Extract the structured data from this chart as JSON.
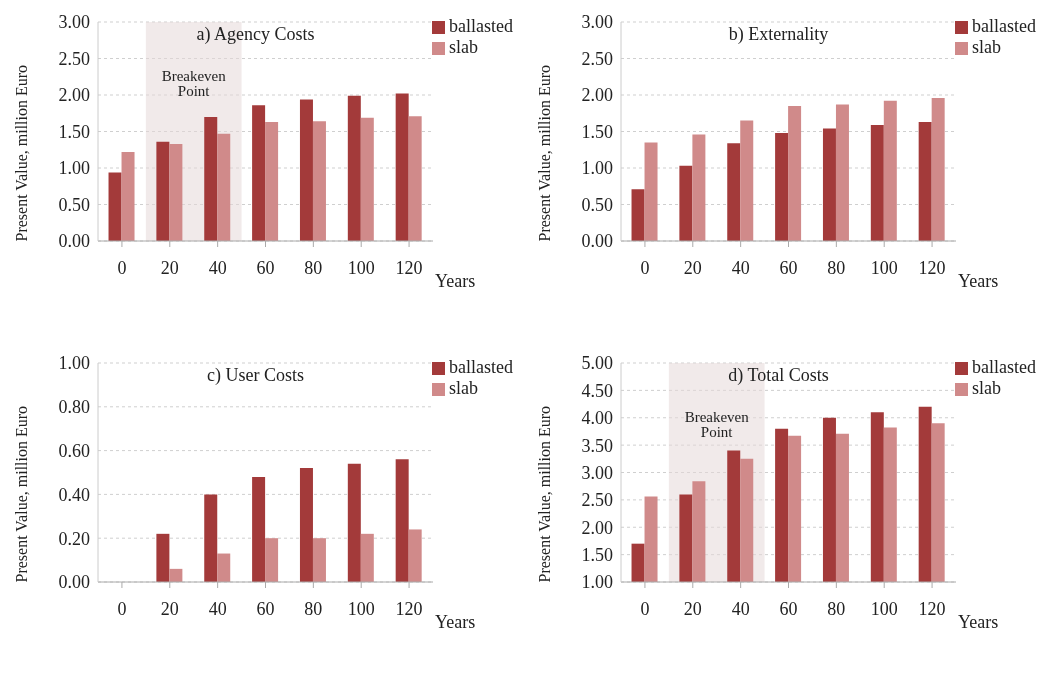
{
  "chart_data": [
    {
      "type": "bar",
      "title": "a) Agency Costs",
      "xlabel": "Years",
      "ylabel": "Present Value, million Euro",
      "categories": [
        "0",
        "20",
        "40",
        "60",
        "80",
        "100",
        "120"
      ],
      "series": [
        {
          "name": "ballasted",
          "color": "#a33a3a",
          "values": [
            0.94,
            1.36,
            1.7,
            1.86,
            1.94,
            1.99,
            2.02
          ]
        },
        {
          "name": "slab",
          "color": "#d08a8a",
          "values": [
            1.22,
            1.33,
            1.47,
            1.63,
            1.64,
            1.69,
            1.71
          ]
        }
      ],
      "ylim": [
        0,
        3
      ],
      "yticks": [
        {
          "value": 0,
          "label": "0.00"
        },
        {
          "value": 0.5,
          "label": "0.50"
        },
        {
          "value": 1,
          "label": "1.00"
        },
        {
          "value": 1.5,
          "label": "1.50"
        },
        {
          "value": 2,
          "label": "2.00"
        },
        {
          "value": 2.5,
          "label": "2.50"
        },
        {
          "value": 3,
          "label": "3.00"
        }
      ],
      "bands": [
        {
          "axis": "x",
          "from": "20",
          "to": "40",
          "label": "Breakeven Point",
          "color": "#e6d8d8"
        }
      ],
      "grid": "y",
      "legend": "top right"
    },
    {
      "type": "bar",
      "title": "b) Externality",
      "xlabel": "Years",
      "ylabel": "Present Value, million Euro",
      "categories": [
        "0",
        "20",
        "40",
        "60",
        "80",
        "100",
        "120"
      ],
      "series": [
        {
          "name": "ballasted",
          "color": "#a33a3a",
          "values": [
            0.71,
            1.03,
            1.34,
            1.48,
            1.54,
            1.59,
            1.63
          ]
        },
        {
          "name": "slab",
          "color": "#d08a8a",
          "values": [
            1.35,
            1.46,
            1.65,
            1.85,
            1.87,
            1.92,
            1.96
          ]
        }
      ],
      "ylim": [
        0,
        3
      ],
      "yticks": [
        {
          "value": 0,
          "label": "0.00"
        },
        {
          "value": 0.5,
          "label": "0.50"
        },
        {
          "value": 1,
          "label": "1.00"
        },
        {
          "value": 1.5,
          "label": "1.50"
        },
        {
          "value": 2,
          "label": "2.00"
        },
        {
          "value": 2.5,
          "label": "2.50"
        },
        {
          "value": 3,
          "label": "3.00"
        }
      ],
      "grid": "y",
      "legend": "top right"
    },
    {
      "type": "bar",
      "title": "c) User Costs",
      "xlabel": "Years",
      "ylabel": "Present Value, million Euro",
      "categories": [
        "0",
        "20",
        "40",
        "60",
        "80",
        "100",
        "120"
      ],
      "series": [
        {
          "name": "ballasted",
          "color": "#a33a3a",
          "values": [
            0,
            0.22,
            0.4,
            0.48,
            0.52,
            0.54,
            0.56
          ]
        },
        {
          "name": "slab",
          "color": "#d08a8a",
          "values": [
            0,
            0.06,
            0.13,
            0.2,
            0.2,
            0.22,
            0.24
          ]
        }
      ],
      "ylim": [
        0,
        1
      ],
      "yticks": [
        {
          "value": 0,
          "label": "0.00"
        },
        {
          "value": 0.2,
          "label": "0.20"
        },
        {
          "value": 0.4,
          "label": "0.40"
        },
        {
          "value": 0.6,
          "label": "0.60"
        },
        {
          "value": 0.8,
          "label": "0.80"
        },
        {
          "value": 1,
          "label": "1.00"
        }
      ],
      "grid": "y",
      "legend": "top right"
    },
    {
      "type": "bar",
      "title": "d) Total Costs",
      "xlabel": "Years",
      "ylabel": "Present Value, million Euro",
      "categories": [
        "0",
        "20",
        "40",
        "60",
        "80",
        "100",
        "120"
      ],
      "series": [
        {
          "name": "ballasted",
          "color": "#a33a3a",
          "values": [
            1.7,
            2.6,
            3.4,
            3.8,
            4.0,
            4.1,
            4.2
          ]
        },
        {
          "name": "slab",
          "color": "#d08a8a",
          "values": [
            2.56,
            2.84,
            3.25,
            3.67,
            3.71,
            3.82,
            3.9
          ]
        }
      ],
      "ylim": [
        1,
        5
      ],
      "yticks": [
        {
          "value": 1,
          "label": "1.00"
        },
        {
          "value": 1.5,
          "label": "1.50"
        },
        {
          "value": 2,
          "label": "2.00"
        },
        {
          "value": 2.5,
          "label": "2.50"
        },
        {
          "value": 3,
          "label": "3.00"
        },
        {
          "value": 3.5,
          "label": "3.50"
        },
        {
          "value": 4,
          "label": "4.00"
        },
        {
          "value": 4.5,
          "label": "4.50"
        },
        {
          "value": 5,
          "label": "5.00"
        }
      ],
      "bands": [
        {
          "axis": "x",
          "from": "20",
          "to": "40",
          "label": "Breakeven Point",
          "color": "#e6d8d8"
        }
      ],
      "grid": "y",
      "legend": "top right"
    }
  ]
}
